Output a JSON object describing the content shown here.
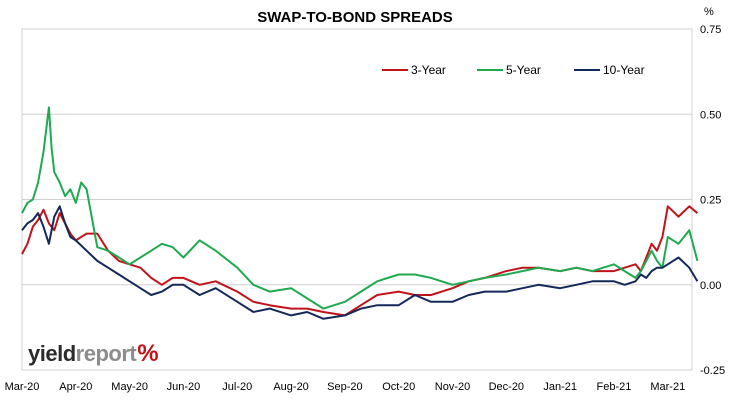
{
  "chart_data": {
    "type": "line",
    "title": "SWAP-TO-BOND SPREADS",
    "ylabel": "%",
    "ylim": [
      -0.25,
      0.75
    ],
    "yticks": [
      "0.75",
      "0.50",
      "0.25",
      "0.00",
      "-0.25"
    ],
    "ytick_values": [
      0.75,
      0.5,
      0.25,
      0.0,
      -0.25
    ],
    "categories": [
      "Mar-20",
      "Apr-20",
      "May-20",
      "Jun-20",
      "Jul-20",
      "Aug-20",
      "Sep-20",
      "Oct-20",
      "Nov-20",
      "Dec-20",
      "Jan-21",
      "Feb-21",
      "Mar-21"
    ],
    "legend_position": "top-right",
    "grid": true,
    "series": [
      {
        "name": "3-Year",
        "color": "#c0141b",
        "x": [
          0,
          0.1,
          0.2,
          0.3,
          0.4,
          0.5,
          0.6,
          0.7,
          0.8,
          0.9,
          1.0,
          1.2,
          1.4,
          1.6,
          1.8,
          2.0,
          2.2,
          2.4,
          2.6,
          2.8,
          3.0,
          3.3,
          3.6,
          4.0,
          4.3,
          4.6,
          5.0,
          5.3,
          5.6,
          6.0,
          6.3,
          6.6,
          7.0,
          7.3,
          7.6,
          8.0,
          8.3,
          8.6,
          9.0,
          9.3,
          9.6,
          10.0,
          10.3,
          10.6,
          11.0,
          11.2,
          11.4,
          11.5,
          11.6,
          11.7,
          11.8,
          11.9,
          12.0,
          12.2,
          12.4,
          12.55
        ],
        "values": [
          0.09,
          0.12,
          0.17,
          0.19,
          0.22,
          0.18,
          0.16,
          0.21,
          0.18,
          0.15,
          0.13,
          0.15,
          0.15,
          0.1,
          0.07,
          0.06,
          0.05,
          0.02,
          0.0,
          0.02,
          0.02,
          0.0,
          0.01,
          -0.02,
          -0.05,
          -0.06,
          -0.07,
          -0.07,
          -0.08,
          -0.09,
          -0.06,
          -0.03,
          -0.02,
          -0.03,
          -0.03,
          -0.01,
          0.01,
          0.02,
          0.04,
          0.05,
          0.05,
          0.04,
          0.05,
          0.04,
          0.04,
          0.05,
          0.06,
          0.04,
          0.08,
          0.12,
          0.1,
          0.14,
          0.23,
          0.2,
          0.23,
          0.21
        ]
      },
      {
        "name": "5-Year",
        "color": "#1faa4f",
        "x": [
          0,
          0.1,
          0.2,
          0.3,
          0.4,
          0.5,
          0.55,
          0.6,
          0.7,
          0.8,
          0.9,
          1.0,
          1.1,
          1.2,
          1.4,
          1.6,
          1.8,
          2.0,
          2.2,
          2.4,
          2.6,
          2.8,
          3.0,
          3.3,
          3.6,
          4.0,
          4.3,
          4.6,
          5.0,
          5.3,
          5.6,
          6.0,
          6.3,
          6.6,
          7.0,
          7.3,
          7.6,
          8.0,
          8.3,
          8.6,
          9.0,
          9.3,
          9.6,
          10.0,
          10.3,
          10.6,
          11.0,
          11.2,
          11.4,
          11.5,
          11.6,
          11.7,
          11.8,
          11.9,
          12.0,
          12.2,
          12.4,
          12.55
        ],
        "values": [
          0.21,
          0.24,
          0.25,
          0.3,
          0.39,
          0.52,
          0.4,
          0.33,
          0.3,
          0.26,
          0.28,
          0.24,
          0.3,
          0.28,
          0.11,
          0.1,
          0.08,
          0.06,
          0.08,
          0.1,
          0.12,
          0.11,
          0.08,
          0.13,
          0.1,
          0.05,
          0.0,
          -0.02,
          -0.01,
          -0.04,
          -0.07,
          -0.05,
          -0.02,
          0.01,
          0.03,
          0.03,
          0.02,
          0.0,
          0.01,
          0.02,
          0.03,
          0.04,
          0.05,
          0.04,
          0.05,
          0.04,
          0.06,
          0.04,
          0.02,
          0.04,
          0.07,
          0.1,
          0.07,
          0.05,
          0.14,
          0.12,
          0.16,
          0.07
        ]
      },
      {
        "name": "10-Year",
        "color": "#14285a",
        "x": [
          0,
          0.1,
          0.2,
          0.3,
          0.4,
          0.5,
          0.6,
          0.7,
          0.8,
          0.9,
          1.0,
          1.2,
          1.4,
          1.6,
          1.8,
          2.0,
          2.2,
          2.4,
          2.6,
          2.8,
          3.0,
          3.3,
          3.6,
          4.0,
          4.3,
          4.6,
          5.0,
          5.3,
          5.6,
          6.0,
          6.3,
          6.6,
          7.0,
          7.3,
          7.6,
          8.0,
          8.3,
          8.6,
          9.0,
          9.3,
          9.6,
          10.0,
          10.3,
          10.6,
          11.0,
          11.2,
          11.4,
          11.5,
          11.6,
          11.7,
          11.8,
          11.9,
          12.0,
          12.2,
          12.4,
          12.55
        ],
        "values": [
          0.16,
          0.18,
          0.19,
          0.21,
          0.17,
          0.12,
          0.2,
          0.23,
          0.18,
          0.14,
          0.13,
          0.1,
          0.07,
          0.05,
          0.03,
          0.01,
          -0.01,
          -0.03,
          -0.02,
          0.0,
          0.0,
          -0.03,
          -0.01,
          -0.05,
          -0.08,
          -0.07,
          -0.09,
          -0.08,
          -0.1,
          -0.09,
          -0.07,
          -0.06,
          -0.06,
          -0.03,
          -0.05,
          -0.05,
          -0.03,
          -0.02,
          -0.02,
          -0.01,
          0.0,
          -0.01,
          0.0,
          0.01,
          0.01,
          0.0,
          0.01,
          0.03,
          0.02,
          0.04,
          0.05,
          0.05,
          0.06,
          0.08,
          0.05,
          0.01
        ]
      }
    ]
  },
  "logo": {
    "part1": "yield",
    "part2": "report",
    "part3": "%"
  }
}
